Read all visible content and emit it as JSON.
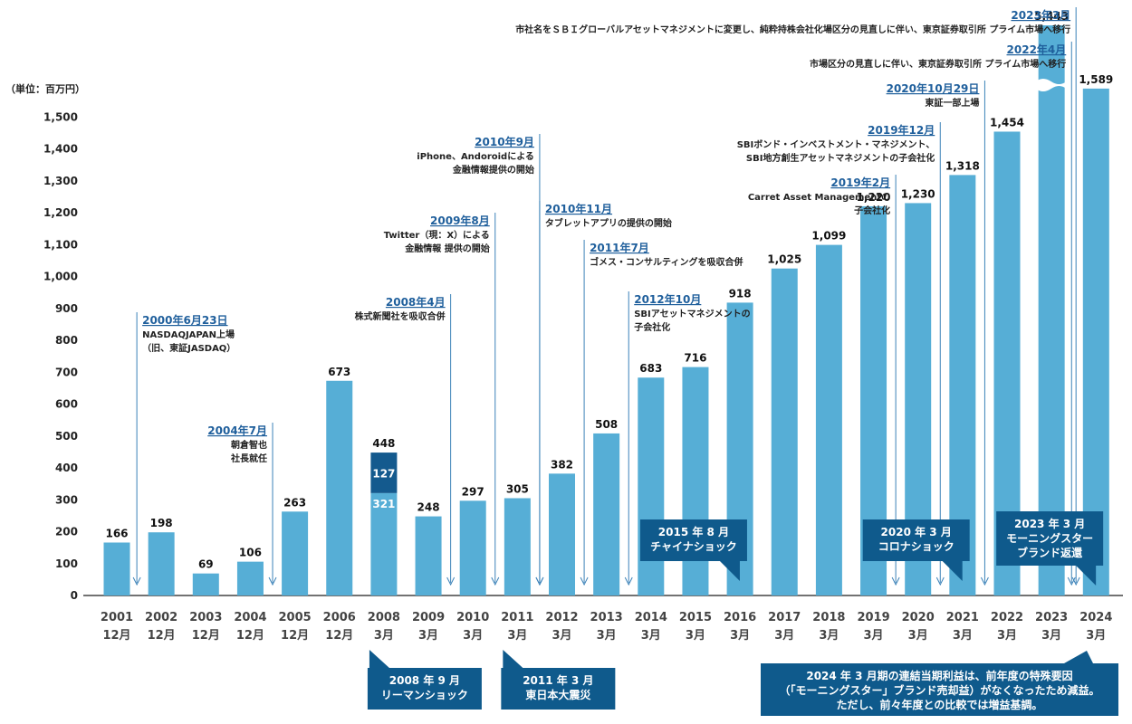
{
  "unit_label": "（単位：百万円）",
  "colors": {
    "bar": "#56aed6",
    "bar_2008_lower": "#56aed6",
    "bar_2008_middle": "#145a8e",
    "bar_2008_upper": "#a6c4d9",
    "arrow": "#3b82b8",
    "callout": "#0f5a8c",
    "date_text": "#1f5f9c"
  },
  "chart_data": {
    "type": "bar",
    "title": "",
    "xlabel": "",
    "ylabel": "（単位：百万円）",
    "ylim": [
      0,
      1500
    ],
    "y_ticks": [
      "0",
      "100",
      "200",
      "300",
      "400",
      "500",
      "600",
      "700",
      "800",
      "900",
      "1,000",
      "1,100",
      "1,200",
      "1,300",
      "1,400",
      "1,500"
    ],
    "categories": [
      {
        "year": "2001",
        "month": "12月"
      },
      {
        "year": "2002",
        "month": "12月"
      },
      {
        "year": "2003",
        "month": "12月"
      },
      {
        "year": "2004",
        "month": "12月"
      },
      {
        "year": "2005",
        "month": "12月"
      },
      {
        "year": "2006",
        "month": "12月"
      },
      {
        "year": "2008",
        "month": "3月"
      },
      {
        "year": "2009",
        "month": "3月"
      },
      {
        "year": "2010",
        "month": "3月"
      },
      {
        "year": "2011",
        "month": "3月"
      },
      {
        "year": "2012",
        "month": "3月"
      },
      {
        "year": "2013",
        "month": "3月"
      },
      {
        "year": "2014",
        "month": "3月"
      },
      {
        "year": "2015",
        "month": "3月"
      },
      {
        "year": "2016",
        "month": "3月"
      },
      {
        "year": "2017",
        "month": "3月"
      },
      {
        "year": "2018",
        "month": "3月"
      },
      {
        "year": "2019",
        "month": "3月"
      },
      {
        "year": "2020",
        "month": "3月"
      },
      {
        "year": "2021",
        "month": "3月"
      },
      {
        "year": "2022",
        "month": "3月"
      },
      {
        "year": "2023",
        "month": "3月"
      },
      {
        "year": "2024",
        "month": "3月"
      }
    ],
    "values": [
      166,
      198,
      69,
      106,
      263,
      673,
      448,
      248,
      297,
      305,
      382,
      508,
      683,
      716,
      918,
      1025,
      1099,
      1220,
      1230,
      1318,
      1454,
      5443,
      1589
    ],
    "value_labels": [
      "166",
      "198",
      "69",
      "106",
      "263",
      "673",
      "448",
      "248",
      "297",
      "305",
      "382",
      "508",
      "683",
      "716",
      "918",
      "1,025",
      "1,099",
      "1,220",
      "1,230",
      "1,318",
      "1,454",
      "5,443",
      "1,589"
    ],
    "stacked_2008": {
      "lower": 321,
      "middle": 127,
      "total": 448,
      "lower_label": "321",
      "middle_label": "127"
    },
    "axis_break_index": 21
  },
  "events": [
    {
      "pos": -0.05,
      "date": "2000年6月23日",
      "lines": [
        "NASDAQJAPAN上場",
        "（旧、東証JASDAQ）"
      ],
      "side": "right"
    },
    {
      "pos": 3.0,
      "date": "2004年7月",
      "lines": [
        "朝倉智也",
        "社長就任"
      ],
      "side": "left"
    },
    {
      "pos": 7.0,
      "date": "2008年4月",
      "lines": [
        "株式新聞社を吸収合併"
      ],
      "side": "left"
    },
    {
      "pos": 8.0,
      "date": "2009年8月",
      "lines": [
        "Twitter（現：X）による",
        "金融情報 提供の開始"
      ],
      "side": "left"
    },
    {
      "pos": 9.0,
      "date": "2010年9月",
      "lines": [
        "iPhone、Andoroidによる",
        "金融情報提供の開始"
      ],
      "side": "left"
    },
    {
      "pos": 9.0,
      "date": "2010年11月",
      "lines": [
        "タブレットアプリの提供の開始"
      ],
      "side": "right"
    },
    {
      "pos": 10.0,
      "date": "2011年7月",
      "lines": [
        "ゴメス・コンサルティングを吸収合併"
      ],
      "side": "right"
    },
    {
      "pos": 11.0,
      "date": "2012年10月",
      "lines": [
        "SBIアセットマネジメントの",
        "子会社化"
      ],
      "side": "right"
    },
    {
      "pos": 17.0,
      "date": "2019年2月",
      "lines": [
        "Carret Asset Managementの",
        "子会社化"
      ],
      "side": "left"
    },
    {
      "pos": 18.0,
      "date": "2019年12月",
      "lines": [
        "SBIボンド・インベストメント・マネジメント、",
        "SBI地方創生アセットマネジメントの子会社化"
      ],
      "side": "left"
    },
    {
      "pos": 19.0,
      "date": "2020年10月29日",
      "lines": [
        "東証一部上場"
      ],
      "side": "left"
    },
    {
      "pos": 20.95,
      "date": "2022年4月",
      "lines": [
        "市場区分の見直しに伴い、東京証券取引所 プライム市場へ移行"
      ],
      "side": "left"
    },
    {
      "pos": 21.05,
      "date": "2023年3月",
      "lines": [
        "市社名をＳＢＩグローバルアセットマネジメントに変更し、純粋持株会社化場区分の見直しに伴い、東京証券取引所 プライム市場へ移行"
      ],
      "side": "left"
    }
  ],
  "callouts": [
    {
      "text": [
        "2008 年 9 月",
        "リーマンショック"
      ],
      "bar_index": 6,
      "placement": "below"
    },
    {
      "text": [
        "2011 年 3 月",
        "東日本大震災"
      ],
      "bar_index": 9,
      "placement": "below"
    },
    {
      "text": [
        "2015 年 8 月",
        "チャイナショック"
      ],
      "bar_index": 13,
      "placement": "above"
    },
    {
      "text": [
        "2020 年 3 月",
        "コロナショック"
      ],
      "bar_index": 18,
      "placement": "above"
    },
    {
      "text": [
        "2023 年 3 月",
        "モーニングスター",
        "ブランド返還"
      ],
      "bar_index": 21,
      "placement": "above"
    },
    {
      "text": [
        "2024 年 3 月期の連結当期利益は、前年度の特殊要因",
        "（「モーニングスター」ブランド売却益）がなくなったため減益。",
        "ただし、前々年度との比較では増益基調。"
      ],
      "bar_index": 22,
      "placement": "note"
    }
  ]
}
